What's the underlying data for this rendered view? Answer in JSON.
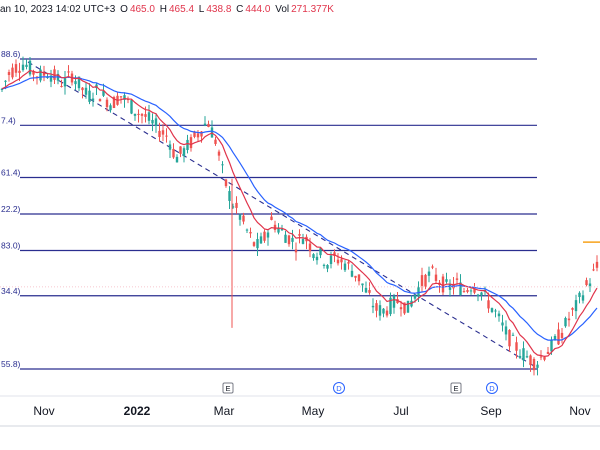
{
  "header": {
    "date_text": "an 10, 2023 14:02 UTC+3",
    "o_label": "O",
    "o_value": "465.0",
    "h_label": "H",
    "h_value": "465.4",
    "l_label": "L",
    "l_value": "438.8",
    "c_label": "C",
    "c_value": "444.0",
    "vol_label": "Vol",
    "vol_value": "271.377K"
  },
  "colors": {
    "fib_line": "#2a2e8f",
    "ema_fast": "#e0344b",
    "ema_slow": "#2962ff",
    "candle_up": "#26a69a",
    "candle_down": "#ef5350",
    "trendline": "#2a2e8f",
    "marker_price": "#f7a21b"
  },
  "chart_data": {
    "type": "candlestick",
    "x_tick_labels": [
      "Nov",
      "2022",
      "Mar",
      "May",
      "Jul",
      "Sep",
      "Nov"
    ],
    "fib_levels": [
      {
        "label": "88.6)",
        "value": 688.6
      },
      {
        "label": "7.4)",
        "value": 617.4
      },
      {
        "label": "61.4)",
        "value": 561.4
      },
      {
        "label": "22.2)",
        "value": 522.2
      },
      {
        "label": "83.0)",
        "value": 483.0
      },
      {
        "label": "34.4)",
        "value": 434.4
      },
      {
        "label": "55.8)",
        "value": 355.8
      }
    ],
    "event_markers": [
      {
        "label": "E",
        "kind": "earnings",
        "position": "near-Mar"
      },
      {
        "label": "D",
        "kind": "dividend",
        "position": "near-May"
      },
      {
        "label": "E",
        "kind": "earnings",
        "position": "near-Aug"
      },
      {
        "label": "D",
        "kind": "dividend",
        "position": "near-Aug"
      }
    ],
    "price_path": [
      [
        0,
        650
      ],
      [
        8,
        672
      ],
      [
        16,
        680
      ],
      [
        24,
        684
      ],
      [
        32,
        676
      ],
      [
        40,
        670
      ],
      [
        48,
        675
      ],
      [
        56,
        668
      ],
      [
        64,
        662
      ],
      [
        72,
        672
      ],
      [
        80,
        660
      ],
      [
        88,
        648
      ],
      [
        96,
        655
      ],
      [
        104,
        648
      ],
      [
        112,
        640
      ],
      [
        120,
        650
      ],
      [
        128,
        642
      ],
      [
        136,
        632
      ],
      [
        144,
        628
      ],
      [
        152,
        620
      ],
      [
        160,
        612
      ],
      [
        168,
        605
      ],
      [
        176,
        582
      ],
      [
        184,
        590
      ],
      [
        192,
        600
      ],
      [
        200,
        612
      ],
      [
        208,
        622
      ],
      [
        216,
        600
      ],
      [
        224,
        560
      ],
      [
        232,
        535
      ],
      [
        240,
        520
      ],
      [
        248,
        502
      ],
      [
        256,
        486
      ],
      [
        264,
        495
      ],
      [
        272,
        515
      ],
      [
        280,
        505
      ],
      [
        288,
        498
      ],
      [
        296,
        490
      ],
      [
        304,
        500
      ],
      [
        312,
        485
      ],
      [
        320,
        478
      ],
      [
        328,
        470
      ],
      [
        336,
        475
      ],
      [
        344,
        470
      ],
      [
        352,
        462
      ],
      [
        360,
        452
      ],
      [
        368,
        435
      ],
      [
        376,
        420
      ],
      [
        384,
        418
      ],
      [
        392,
        425
      ],
      [
        400,
        430
      ],
      [
        408,
        420
      ],
      [
        416,
        438
      ],
      [
        424,
        452
      ],
      [
        432,
        458
      ],
      [
        440,
        450
      ],
      [
        448,
        442
      ],
      [
        456,
        448
      ],
      [
        464,
        440
      ],
      [
        472,
        447
      ],
      [
        480,
        440
      ],
      [
        488,
        428
      ],
      [
        496,
        415
      ],
      [
        504,
        398
      ],
      [
        512,
        385
      ],
      [
        520,
        375
      ],
      [
        528,
        368
      ],
      [
        536,
        362
      ],
      [
        544,
        372
      ],
      [
        552,
        380
      ],
      [
        560,
        392
      ],
      [
        568,
        408
      ],
      [
        576,
        422
      ],
      [
        584,
        440
      ],
      [
        592,
        455
      ],
      [
        600,
        470
      ]
    ]
  }
}
